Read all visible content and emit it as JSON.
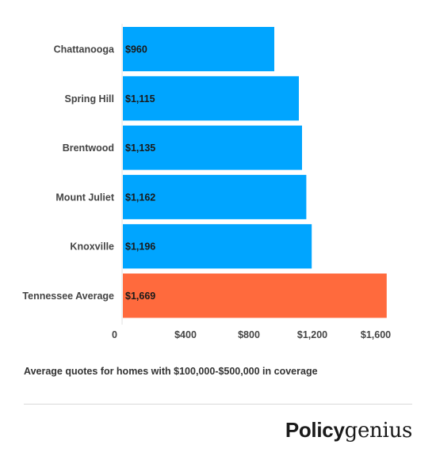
{
  "chart_data": {
    "type": "bar",
    "orientation": "horizontal",
    "categories": [
      "Chattanooga",
      "Spring Hill",
      "Brentwood",
      "Mount Juliet",
      "Knoxville",
      "Tennessee Average"
    ],
    "values": [
      960,
      1115,
      1135,
      1162,
      1196,
      1669
    ],
    "value_labels": [
      "$960",
      "$1,115",
      "$1,135",
      "$1,162",
      "$1,196",
      "$1,669"
    ],
    "bar_colors": [
      "#00a5ff",
      "#00a5ff",
      "#00a5ff",
      "#00a5ff",
      "#00a5ff",
      "#ff6a3d"
    ],
    "xlim": [
      0,
      1900
    ],
    "xticks": [
      0,
      400,
      800,
      1200,
      1600
    ],
    "xtick_labels": [
      "0",
      "$400",
      "$800",
      "$1,200",
      "$1,600"
    ],
    "grid": false,
    "title": "",
    "xlabel": "",
    "ylabel": ""
  },
  "caption": "Average quotes for homes with $100,000-$500,000 in coverage",
  "logo": {
    "part1": "Policy",
    "part2": "genius"
  }
}
